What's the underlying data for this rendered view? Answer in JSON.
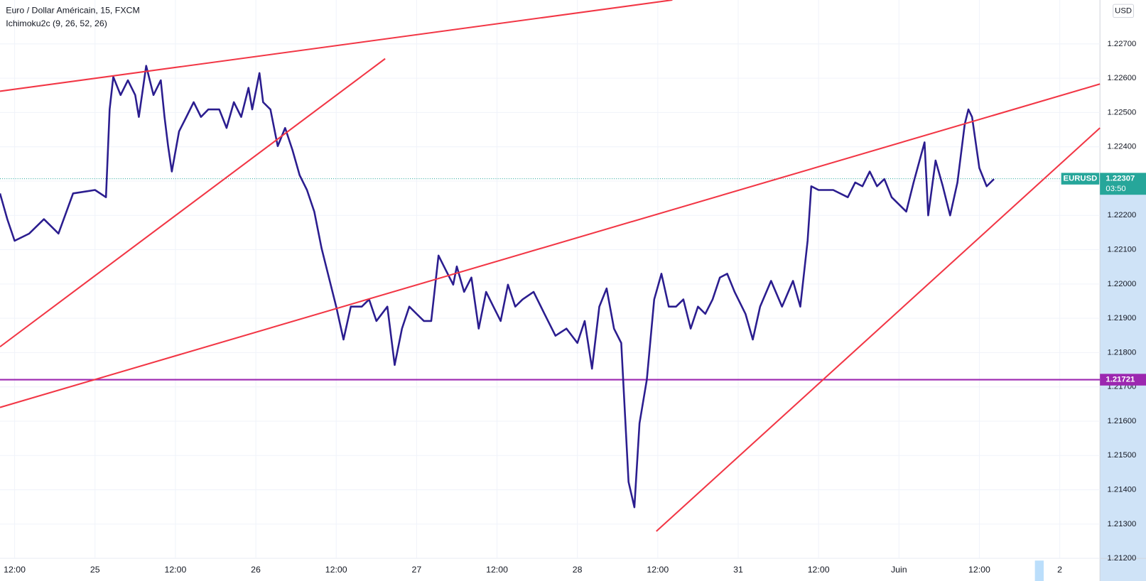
{
  "chart_data": {
    "type": "line",
    "title": "Euro / Dollar Américain, 15, FXCM",
    "indicator": "Ichimoku2c (9, 26, 52, 26)",
    "currency": "USD",
    "xlim": [
      -0.182,
      13.5
    ],
    "xticks": [
      {
        "value": 0,
        "label": "12:00"
      },
      {
        "value": 1,
        "label": "25"
      },
      {
        "value": 2,
        "label": "12:00"
      },
      {
        "value": 3,
        "label": "26"
      },
      {
        "value": 4,
        "label": "12:00"
      },
      {
        "value": 5,
        "label": "27"
      },
      {
        "value": 6,
        "label": "12:00"
      },
      {
        "value": 7,
        "label": "28"
      },
      {
        "value": 8,
        "label": "12:00"
      },
      {
        "value": 9,
        "label": "31"
      },
      {
        "value": 10,
        "label": "12:00"
      },
      {
        "value": 11,
        "label": "Juin"
      },
      {
        "value": 12,
        "label": "12:00"
      },
      {
        "value": 13,
        "label": "2"
      }
    ],
    "ylim": [
      1.212,
      1.22828
    ],
    "yticks": [
      {
        "value": 1.212,
        "label": "1.21200"
      },
      {
        "value": 1.213,
        "label": "1.21300"
      },
      {
        "value": 1.214,
        "label": "1.21400"
      },
      {
        "value": 1.215,
        "label": "1.21500"
      },
      {
        "value": 1.216,
        "label": "1.21600"
      },
      {
        "value": 1.217,
        "label": "1.21700"
      },
      {
        "value": 1.218,
        "label": "1.21800"
      },
      {
        "value": 1.219,
        "label": "1.21900"
      },
      {
        "value": 1.22,
        "label": "1.22000"
      },
      {
        "value": 1.221,
        "label": "1.22100"
      },
      {
        "value": 1.222,
        "label": "1.22200"
      },
      {
        "value": 1.223,
        "label": "1.22300"
      },
      {
        "value": 1.224,
        "label": "1.22400"
      },
      {
        "value": 1.225,
        "label": "1.22500"
      },
      {
        "value": 1.226,
        "label": "1.22600"
      },
      {
        "value": 1.227,
        "label": "1.22700"
      }
    ],
    "grid": true,
    "series": [
      {
        "color": "#2b1d8f",
        "x": [
          -0.182,
          -0.091,
          0,
          0.182,
          0.364,
          0.545,
          0.727,
          1,
          1.136,
          1.182,
          1.227,
          1.318,
          1.409,
          1.5,
          1.545,
          1.636,
          1.727,
          1.818,
          1.864,
          1.909,
          1.955,
          2.045,
          2.136,
          2.227,
          2.318,
          2.409,
          2.545,
          2.636,
          2.727,
          2.818,
          2.909,
          2.955,
          3.045,
          3.091,
          3.182,
          3.273,
          3.364,
          3.455,
          3.545,
          3.636,
          3.727,
          3.818,
          3.909,
          4,
          4.091,
          4.182,
          4.318,
          4.409,
          4.5,
          4.636,
          4.727,
          4.818,
          4.909,
          5,
          5.091,
          5.182,
          5.273,
          5.364,
          5.455,
          5.5,
          5.591,
          5.682,
          5.773,
          5.864,
          5.955,
          6.045,
          6.136,
          6.227,
          6.318,
          6.455,
          6.591,
          6.727,
          6.864,
          7,
          7.091,
          7.182,
          7.273,
          7.364,
          7.455,
          7.545,
          7.636,
          7.709,
          7.773,
          7.864,
          7.955,
          8.045,
          8.136,
          8.227,
          8.318,
          8.409,
          8.5,
          8.591,
          8.682,
          8.773,
          8.864,
          8.955,
          9.091,
          9.182,
          9.273,
          9.409,
          9.545,
          9.682,
          9.773,
          9.864,
          9.909,
          10,
          10.182,
          10.364,
          10.455,
          10.545,
          10.636,
          10.727,
          10.818,
          10.909,
          11,
          11.091,
          11.182,
          11.318,
          11.364,
          11.455,
          11.545,
          11.636,
          11.727,
          11.818,
          11.864,
          11.909,
          12,
          12.091,
          12.182
        ],
        "values": [
          1.22264,
          1.22189,
          1.22126,
          1.22147,
          1.22189,
          1.22147,
          1.22264,
          1.22274,
          1.22253,
          1.22509,
          1.22604,
          1.22551,
          1.22594,
          1.22551,
          1.22487,
          1.22636,
          1.22551,
          1.22594,
          1.22487,
          1.22402,
          1.22328,
          1.22445,
          1.22487,
          1.2253,
          1.22487,
          1.22509,
          1.22509,
          1.22455,
          1.2253,
          1.22487,
          1.22572,
          1.22509,
          1.22615,
          1.2253,
          1.22509,
          1.22402,
          1.22455,
          1.22391,
          1.22317,
          1.22274,
          1.22211,
          1.22104,
          1.22019,
          1.21934,
          1.21838,
          1.21934,
          1.21934,
          1.21955,
          1.21892,
          1.21934,
          1.21764,
          1.2187,
          1.21934,
          1.21913,
          1.21892,
          1.21892,
          1.22083,
          1.2204,
          1.21998,
          1.22051,
          1.21977,
          1.22019,
          1.2187,
          1.21977,
          1.21934,
          1.21892,
          1.21998,
          1.21934,
          1.21955,
          1.21977,
          1.21913,
          1.21849,
          1.2187,
          1.21828,
          1.21892,
          1.21753,
          1.21934,
          1.21987,
          1.2187,
          1.21828,
          1.21423,
          1.21349,
          1.21594,
          1.21721,
          1.21955,
          1.2203,
          1.21934,
          1.21934,
          1.21955,
          1.2187,
          1.21934,
          1.21913,
          1.21955,
          1.22019,
          1.2203,
          1.21977,
          1.21913,
          1.21838,
          1.21934,
          1.22009,
          1.21934,
          1.22009,
          1.21934,
          1.22126,
          1.22285,
          1.22274,
          1.22274,
          1.22253,
          1.22296,
          1.22285,
          1.22328,
          1.22285,
          1.22306,
          1.22253,
          1.22232,
          1.22211,
          1.22296,
          1.22413,
          1.222,
          1.2236,
          1.22285,
          1.222,
          1.22296,
          1.22466,
          1.22509,
          1.22487,
          1.22338,
          1.22285,
          1.22306
        ]
      }
    ],
    "trendlines": [
      {
        "color": "#f23645",
        "x": [
          -0.182,
          8.182
        ],
        "values": [
          1.22562,
          1.22828
        ]
      },
      {
        "color": "#f23645",
        "x": [
          -0.182,
          4.609
        ],
        "values": [
          1.21817,
          1.22657
        ]
      },
      {
        "color": "#f23645",
        "x": [
          -0.182,
          13.5
        ],
        "values": [
          1.2164,
          1.22583
        ]
      },
      {
        "color": "#f23645",
        "x": [
          7.982,
          13.5
        ],
        "values": [
          1.21279,
          1.22455
        ]
      }
    ],
    "horizontal_line": {
      "value": 1.21721,
      "color": "#9c27b0"
    },
    "last_price": {
      "symbol": "EURUSD",
      "value": 1.22307,
      "countdown": "03:50",
      "color": "#26a69a"
    }
  }
}
